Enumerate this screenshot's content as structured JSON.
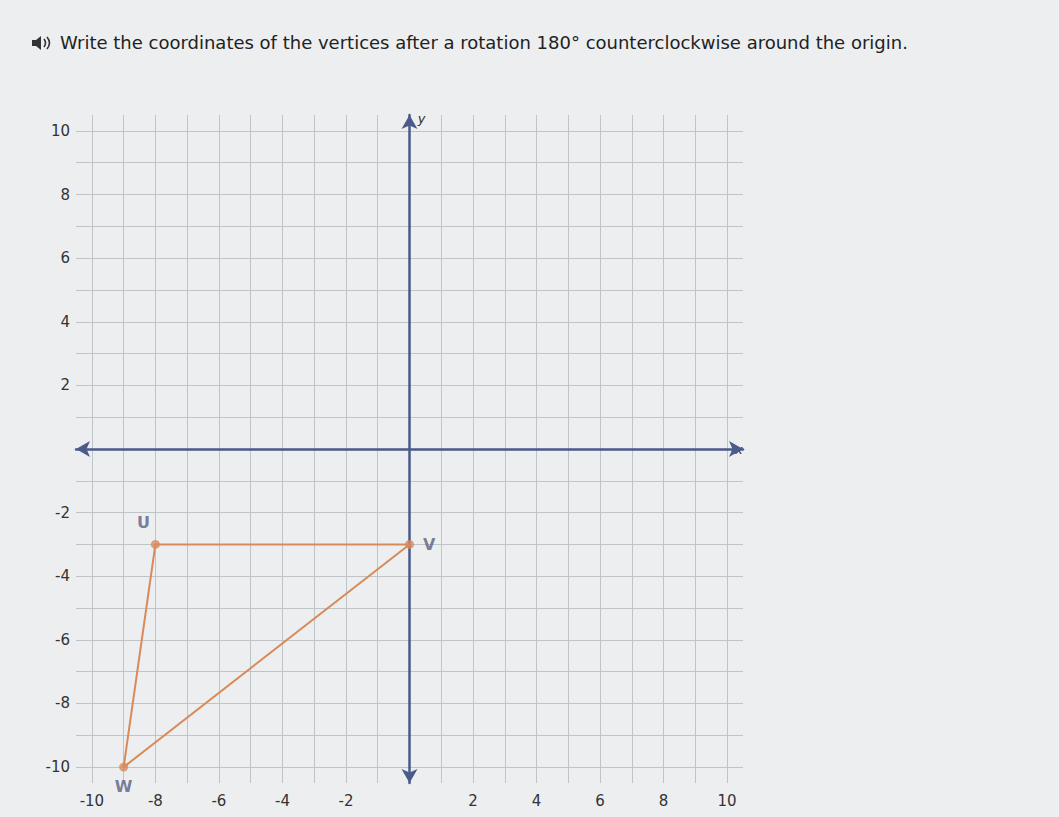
{
  "chart_data": {
    "type": "polygon",
    "title": "Write the coordinates of the vertices after a rotation 180° counterclockwise around the origin.",
    "x_label": "x",
    "y_label": "y",
    "x": [
      -8,
      0,
      -9
    ],
    "y": [
      -3,
      -3,
      -10
    ],
    "point_labels": [
      "U",
      "V",
      "W"
    ],
    "color": "#d98a5a",
    "marker": "circle",
    "xlim": [
      -10.5,
      10.5
    ],
    "ylim": [
      -10.5,
      10.5
    ],
    "xticks": [
      -10,
      -8,
      -6,
      -4,
      -2,
      2,
      4,
      6,
      8,
      10
    ],
    "yticks": [
      -10,
      -8,
      -6,
      -4,
      -2,
      2,
      4,
      6,
      8,
      10
    ],
    "grid": true
  }
}
